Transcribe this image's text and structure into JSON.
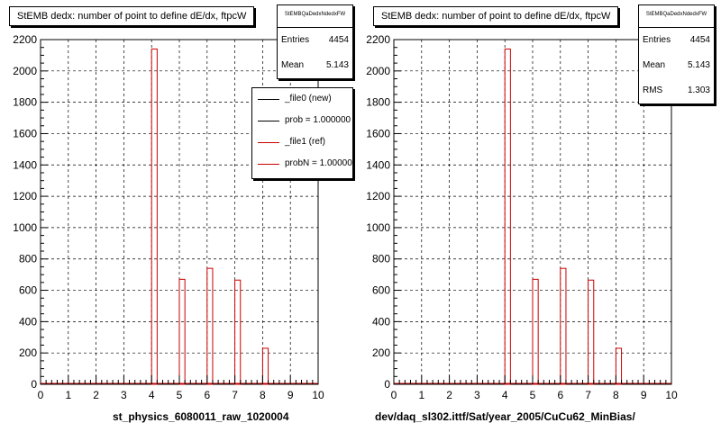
{
  "panels": [
    {
      "title": "StEMB dedx: number of point to define dE/dx, ftpcW",
      "stats": {
        "name": "StEMBQaDedxNdedxFW",
        "rows": [
          {
            "label": "Entries",
            "value": "4454"
          },
          {
            "label": "Mean",
            "value": "5.143"
          }
        ]
      },
      "x_title": "st_physics_6080011_raw_1020004"
    },
    {
      "title": "StEMB dedx: number of point to define dE/dx, ftpcW",
      "stats": {
        "name": "StEMBQaDedxNdedxFW",
        "rows": [
          {
            "label": "Entries",
            "value": "4454"
          },
          {
            "label": "Mean",
            "value": "5.143"
          },
          {
            "label": "RMS",
            "value": "1.303"
          }
        ]
      },
      "x_title": "dev/daq_sl302.ittf/Sat/year_2005/CuCu62_MinBias/"
    }
  ],
  "legend": [
    {
      "label": "_file0 (new)",
      "color": "#000000"
    },
    {
      "label": "prob = 1.000000",
      "color": "#000000"
    },
    {
      "label": "_file1 (ref)",
      "color": "#cc0000"
    },
    {
      "label": "probN = 1.000000",
      "color": "#cc0000"
    }
  ],
  "chart_data": [
    {
      "type": "bar",
      "title": "StEMB dedx: number of point to define dE/dx, ftpcW",
      "xlabel": "st_physics_6080011_raw_1020004",
      "ylabel": "",
      "xlim": [
        0,
        10
      ],
      "ylim": [
        0,
        2200
      ],
      "x_ticks": [
        0,
        1,
        2,
        3,
        4,
        5,
        6,
        7,
        8,
        9,
        10
      ],
      "y_ticks": [
        0,
        200,
        400,
        600,
        800,
        1000,
        1200,
        1400,
        1600,
        1800,
        2000,
        2200
      ],
      "grid": true,
      "bin_width": 0.2,
      "series": [
        {
          "x": [
            4.0,
            5.0,
            6.0,
            7.0,
            8.0
          ],
          "values": [
            2140,
            670,
            740,
            665,
            230
          ],
          "color": "#cc0000"
        }
      ],
      "legend": [
        "_file0 (new)",
        "prob = 1.000000",
        "_file1 (ref)",
        "probN = 1.000000"
      ],
      "legend_position": "top-right"
    },
    {
      "type": "bar",
      "title": "StEMB dedx: number of point to define dE/dx, ftpcW",
      "xlabel": "dev/daq_sl302.ittf/Sat/year_2005/CuCu62_MinBias/",
      "ylabel": "",
      "xlim": [
        0,
        10
      ],
      "ylim": [
        0,
        2200
      ],
      "x_ticks": [
        0,
        1,
        2,
        3,
        4,
        5,
        6,
        7,
        8,
        9,
        10
      ],
      "y_ticks": [
        0,
        200,
        400,
        600,
        800,
        1000,
        1200,
        1400,
        1600,
        1800,
        2000,
        2200
      ],
      "grid": true,
      "bin_width": 0.2,
      "series": [
        {
          "x": [
            4.0,
            5.0,
            6.0,
            7.0,
            8.0
          ],
          "values": [
            2140,
            670,
            740,
            665,
            230
          ],
          "color": "#cc0000"
        }
      ]
    }
  ]
}
